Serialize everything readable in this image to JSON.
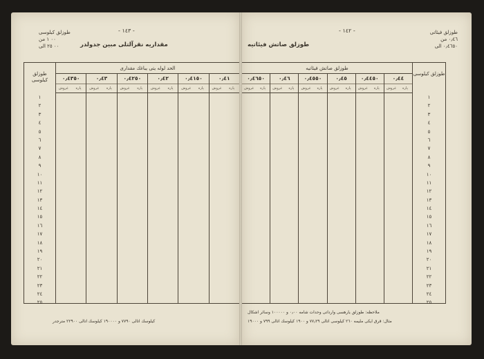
{
  "left_page": {
    "page_number": "- ١٤٣ -",
    "corner_lines": [
      "طوزلق كيلوسى",
      "٠٠ ١ من",
      "٠٠ ٢٥ الى"
    ],
    "title": "مقداريه نقرآلتلى مبين جدولدر",
    "band_label": "الحد لوله يتى يباغك مقدارى",
    "length_header": "طوزلق كيلوسى",
    "columns": [
      "٠٫٤٣٥٠",
      "٠٫٤٣",
      "٠٫٤٢٥٠",
      "٠٫٤٢",
      "٠٫٤١٥٠",
      "٠٫٤١"
    ],
    "sub_labels": [
      "غروش",
      "پاره"
    ],
    "footer_line": "كيلوسك اتالى ٧٧٩٠ و ١٩٠٠٠٠ كيلوسك اتالى ٢٢٩٠٠ مترجدر"
  },
  "right_page": {
    "page_number": "- ١٤٢ -",
    "corner_lines": [
      "طوزلق فيئاتى",
      "٠٫٤٦ من",
      "٠٫٤٦٥٠ الى"
    ],
    "title": "طوزلق صاتش فيئاتيه",
    "band_label": "طوزلق صاتش فيئاتيه",
    "length_header": "طوزلق كيلوسى",
    "columns": [
      "٠٫٤٦٥٠",
      "٠٫٤٦",
      "٠٫٤٥٥٠",
      "٠٫٤٥",
      "٠٫٤٤٥٠",
      "٠٫٤٤"
    ],
    "sub_labels": [
      "غروش",
      "پاره"
    ],
    "note_line_1": "ملاحظه: طوزلق يارهسى وارداتى وحدات شامه ٠٫٠٠ و ١٠٠٠٠٠ وسائر اشكال",
    "note_line_2": "مثال: قرق ايكى مليمه ٢٦٠ كيلوسى اتالى ٧٧٫٢٩ و ١٩٠٠ كيلوسك اتالى ٧٩٩ و ١٩٠٠٠"
  },
  "row_numbers": [
    "١",
    "٢",
    "٣",
    "٤",
    "٥",
    "٦",
    "٧",
    "٨",
    "٩",
    "١٠",
    "١١",
    "١٢",
    "١٣",
    "١٤",
    "١٥",
    "١٦",
    "١٧",
    "١٨",
    "١٩",
    "٢٠",
    "٢١",
    "٢٢",
    "٢٣",
    "٢٤",
    "٢٥"
  ],
  "colors": {
    "paper": "#e9e3d1",
    "ink": "#3a342b",
    "background": "#1c1a17"
  }
}
